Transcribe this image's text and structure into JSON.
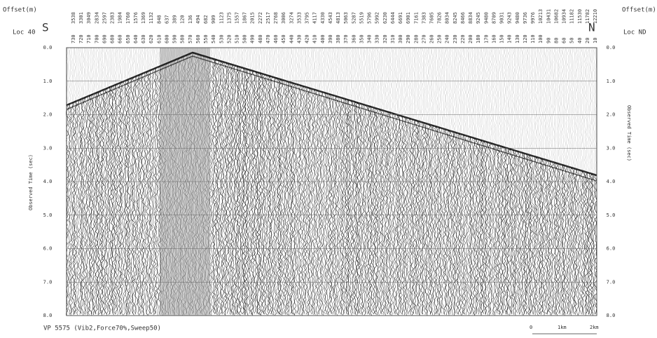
{
  "header": {
    "left_offset_label": "Offset(m)",
    "right_offset_label": "Offset(m)",
    "left_direction": "S",
    "right_direction": "N",
    "left_location": "Loc 40",
    "right_location": "Loc ND"
  },
  "axis": {
    "left_title": "Observed Time (sec)",
    "right_title": "Observed Time (sec)",
    "range": [
      0,
      8
    ],
    "ticks": [
      {
        "value": 0,
        "label": "0.0"
      },
      {
        "value": 1,
        "label": "1.0"
      },
      {
        "value": 2,
        "label": "2.0"
      },
      {
        "value": 3,
        "label": "3.0"
      },
      {
        "value": 4,
        "label": "4.0"
      },
      {
        "value": 5,
        "label": "5.0"
      },
      {
        "value": 6,
        "label": "6.0"
      },
      {
        "value": 7,
        "label": "7.0"
      },
      {
        "value": 8,
        "label": "8.0"
      }
    ]
  },
  "stations": [
    {
      "station": 730,
      "offset": 3538
    },
    {
      "station": 720,
      "offset": 3301
    },
    {
      "station": 710,
      "offset": 3049
    },
    {
      "station": 700,
      "offset": 2834
    },
    {
      "station": 690,
      "offset": 2597
    },
    {
      "station": 680,
      "offset": 2383
    },
    {
      "station": 660,
      "offset": 1984
    },
    {
      "station": 650,
      "offset": 1760
    },
    {
      "station": 640,
      "offset": 1576
    },
    {
      "station": 630,
      "offset": 1369
    },
    {
      "station": 620,
      "offset": 1132
    },
    {
      "station": 610,
      "offset": 848
    },
    {
      "station": 600,
      "offset": 637
    },
    {
      "station": 590,
      "offset": 389
    },
    {
      "station": 580,
      "offset": 120
    },
    {
      "station": 570,
      "offset": 136
    },
    {
      "station": 560,
      "offset": 494
    },
    {
      "station": 550,
      "offset": 682
    },
    {
      "station": 540,
      "offset": 909
    },
    {
      "station": 530,
      "offset": 1123
    },
    {
      "station": 520,
      "offset": 1375
    },
    {
      "station": 510,
      "offset": 1557
    },
    {
      "station": 500,
      "offset": 1867
    },
    {
      "station": 490,
      "offset": 2015
    },
    {
      "station": 480,
      "offset": 2272
    },
    {
      "station": 470,
      "offset": 2517
    },
    {
      "station": 460,
      "offset": 2768
    },
    {
      "station": 450,
      "offset": 3006
    },
    {
      "station": 440,
      "offset": 3274
    },
    {
      "station": 430,
      "offset": 3533
    },
    {
      "station": 420,
      "offset": 3795
    },
    {
      "station": 410,
      "offset": 4117
    },
    {
      "station": 400,
      "offset": 4330
    },
    {
      "station": 390,
      "offset": 4543
    },
    {
      "station": 380,
      "offset": 4813
    },
    {
      "station": 370,
      "offset": 5063
    },
    {
      "station": 360,
      "offset": 5287
    },
    {
      "station": 350,
      "offset": 5519
    },
    {
      "station": 340,
      "offset": 5796
    },
    {
      "station": 330,
      "offset": 5992
    },
    {
      "station": 320,
      "offset": 6230
    },
    {
      "station": 310,
      "offset": 6444
    },
    {
      "station": 300,
      "offset": 6691
    },
    {
      "station": 290,
      "offset": 6901
    },
    {
      "station": 280,
      "offset": 7161
    },
    {
      "station": 270,
      "offset": 7383
    },
    {
      "station": 260,
      "offset": 7605
    },
    {
      "station": 250,
      "offset": 7826
    },
    {
      "station": 240,
      "offset": 8034
    },
    {
      "station": 230,
      "offset": 8245
    },
    {
      "station": 220,
      "offset": 8466
    },
    {
      "station": 200,
      "offset": 8834
    },
    {
      "station": 180,
      "offset": 9245
    },
    {
      "station": 170,
      "offset": 9480
    },
    {
      "station": 160,
      "offset": 8709
    },
    {
      "station": 150,
      "offset": 9031
    },
    {
      "station": 140,
      "offset": 9243
    },
    {
      "station": 130,
      "offset": 9480
    },
    {
      "station": 120,
      "offset": 9736
    },
    {
      "station": 110,
      "offset": 9976
    },
    {
      "station": 100,
      "offset": 10213
    },
    {
      "station": 90,
      "offset": 10431
    },
    {
      "station": 80,
      "offset": 10682
    },
    {
      "station": 60,
      "offset": 10934
    },
    {
      "station": 50,
      "offset": 11182
    },
    {
      "station": 40,
      "offset": 11530
    },
    {
      "station": 20,
      "offset": 11782
    },
    {
      "station": 10,
      "offset": 12210
    }
  ],
  "footer": {
    "caption": "VP 5575 (Vib2,Force70%,Sweep50)",
    "scale_labels": [
      "0",
      "1km",
      "2km"
    ]
  }
}
